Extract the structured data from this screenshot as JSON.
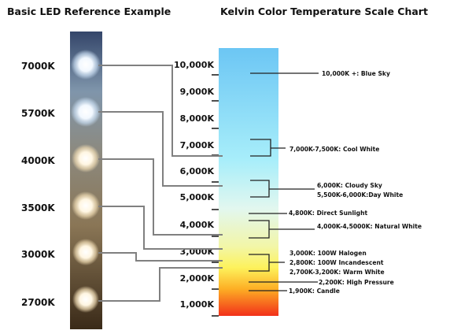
{
  "left_title": "Basic LED Reference Example",
  "right_title": "Kelvin Color Temperature Scale Chart",
  "led_labels": [
    "7000K",
    "5700K",
    "4000K",
    "3500K",
    "3000K",
    "2700K"
  ],
  "scale_labels": [
    "10,000K",
    "9,000K",
    "8,000K",
    "7,000K",
    "6,000K",
    "5,000K",
    "4,000K",
    "3,000K",
    "2,000K",
    "1,000K"
  ],
  "annotations": {
    "blue_sky": "10,000K +: Blue Sky",
    "cool_white": "7,000K-7,500K: Cool White",
    "cloudy_sky": "6,000K: Cloudy Sky",
    "day_white": "5,500K-6,000K:Day White",
    "direct_sunlight": "4,800K: Direct Sunlight",
    "natural_white": "4,000K-4,5000K: Natural White",
    "halogen": "3,000K: 100W Halogen",
    "incandescent": "2,800K: 100W Incandescent",
    "warm_white": "2,700K-3,200K: Warm White",
    "high_pressure": "2,200K: High Pressure",
    "candle": "1,900K: Candle"
  },
  "colors": {
    "scale_top": "#6cc6f4",
    "scale_cyan": "#a8eefa",
    "scale_pale": "#e2f7ef",
    "scale_yellow": "#fdf25c",
    "scale_orange": "#fdae24",
    "scale_bottom": "#f2301a",
    "connector": "#808080",
    "annotation_line": "#222222"
  }
}
